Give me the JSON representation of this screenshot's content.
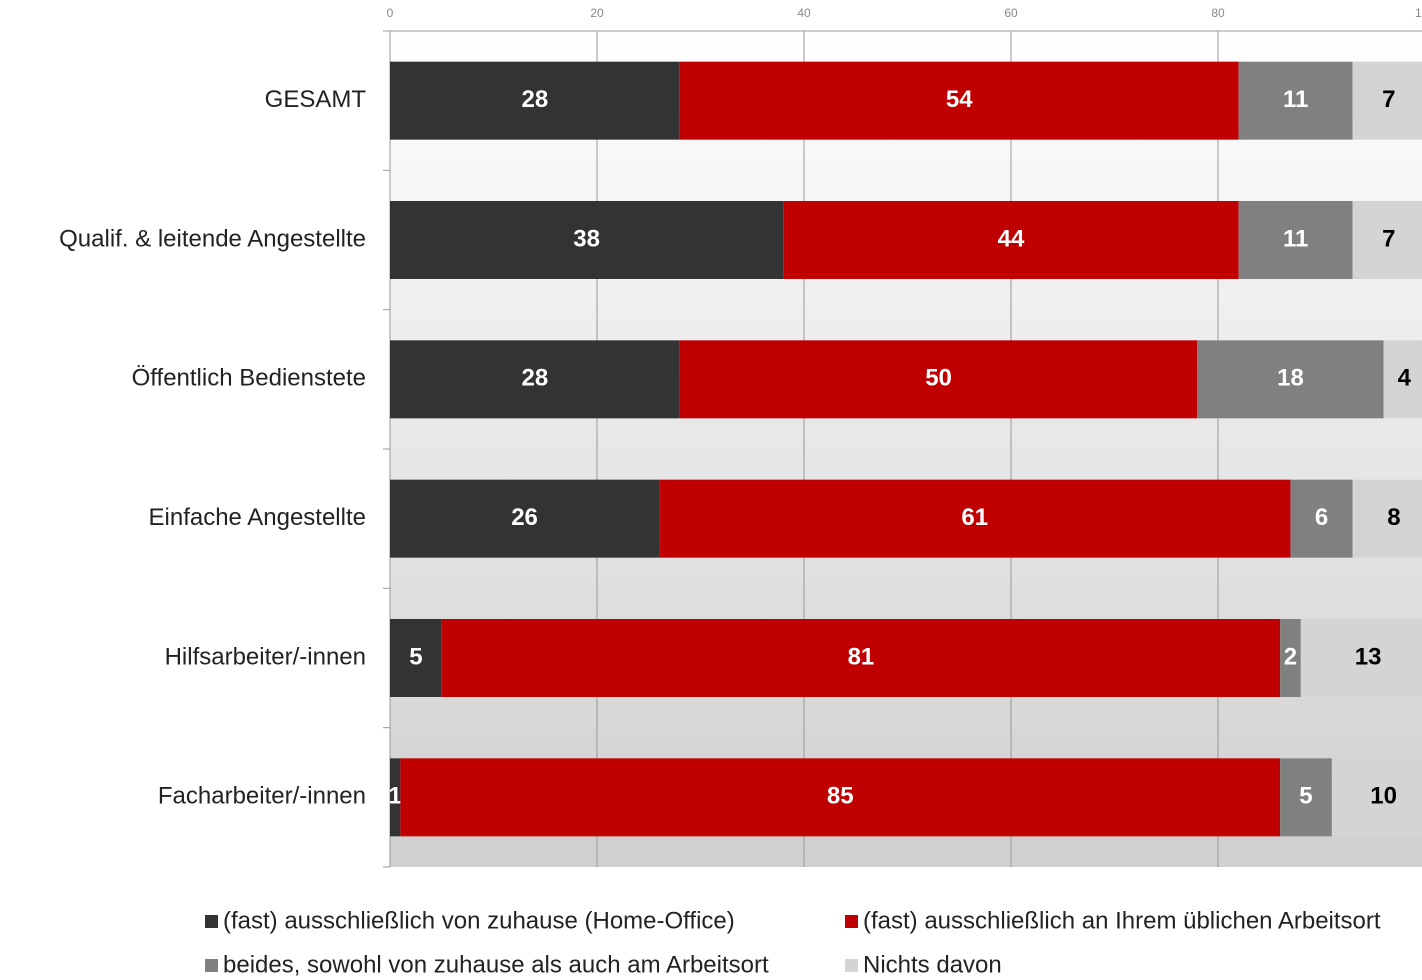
{
  "chart_data": {
    "type": "stacked_bar_horizontal",
    "categories": [
      "GESAMT",
      "Qualif. & leitende Angestellte",
      "Öffentlich Bedienstete",
      "Einfache Angestellte",
      "Hilfsarbeiter/-innen",
      "Facharbeiter/-innen"
    ],
    "series": [
      {
        "name": "(fast) ausschließlich von zuhause (Home-Office)",
        "color": "#333333",
        "label_color": "#ffffff",
        "values": [
          28,
          38,
          28,
          26,
          5,
          1
        ]
      },
      {
        "name": "(fast) ausschließlich an Ihrem üblichen Arbeitsort",
        "color": "#c00000",
        "label_color": "#ffffff",
        "values": [
          54,
          44,
          50,
          61,
          81,
          85
        ]
      },
      {
        "name": "beides, sowohl von zuhause als auch am Arbeitsort",
        "color": "#808080",
        "label_color": "#ffffff",
        "values": [
          11,
          11,
          18,
          6,
          2,
          5
        ]
      },
      {
        "name": "Nichts davon",
        "color": "#d4d4d4",
        "label_color": "#000000",
        "values": [
          7,
          7,
          4,
          8,
          13,
          10
        ]
      }
    ],
    "xlim": [
      0,
      100
    ],
    "xticks": [
      0,
      20,
      40,
      60,
      80,
      100
    ],
    "grid": true
  }
}
